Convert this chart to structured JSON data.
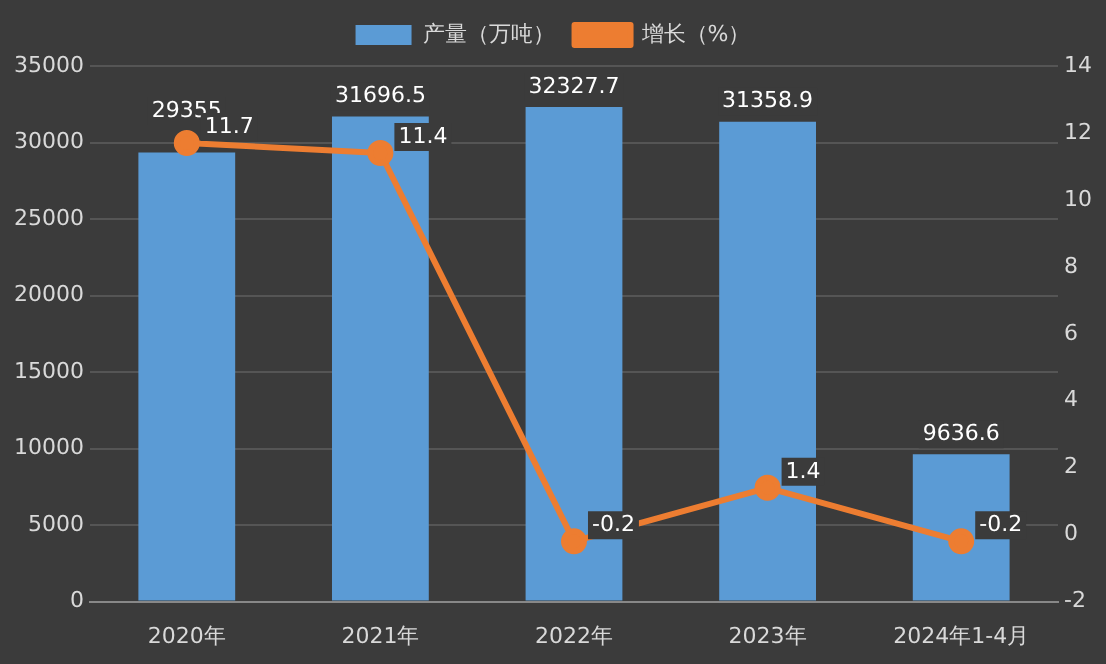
{
  "chart_data": {
    "type": "bar",
    "categories": [
      "2020年",
      "2021年",
      "2022年",
      "2023年",
      "2024年1-4月"
    ],
    "series": [
      {
        "name": "产量（万吨）",
        "color": "#5b9bd5",
        "values": [
          29355,
          31696.5,
          32327.7,
          31358.9,
          9636.6
        ]
      },
      {
        "name": "增长（%）",
        "type": "line",
        "color": "#ed7d31",
        "axis": "y2",
        "marker": "circle",
        "values": [
          11.7,
          11.4,
          -0.2,
          1.4,
          -0.2
        ]
      }
    ],
    "ylim": [
      0,
      35000
    ],
    "yticks": [
      0,
      5000,
      10000,
      15000,
      20000,
      25000,
      30000,
      35000
    ],
    "y2lim": [
      -2,
      14
    ],
    "y2ticks": [
      -2,
      0,
      2,
      4,
      6,
      8,
      10,
      12,
      14
    ],
    "grid": "y",
    "legend": "top",
    "data_labels": true
  }
}
